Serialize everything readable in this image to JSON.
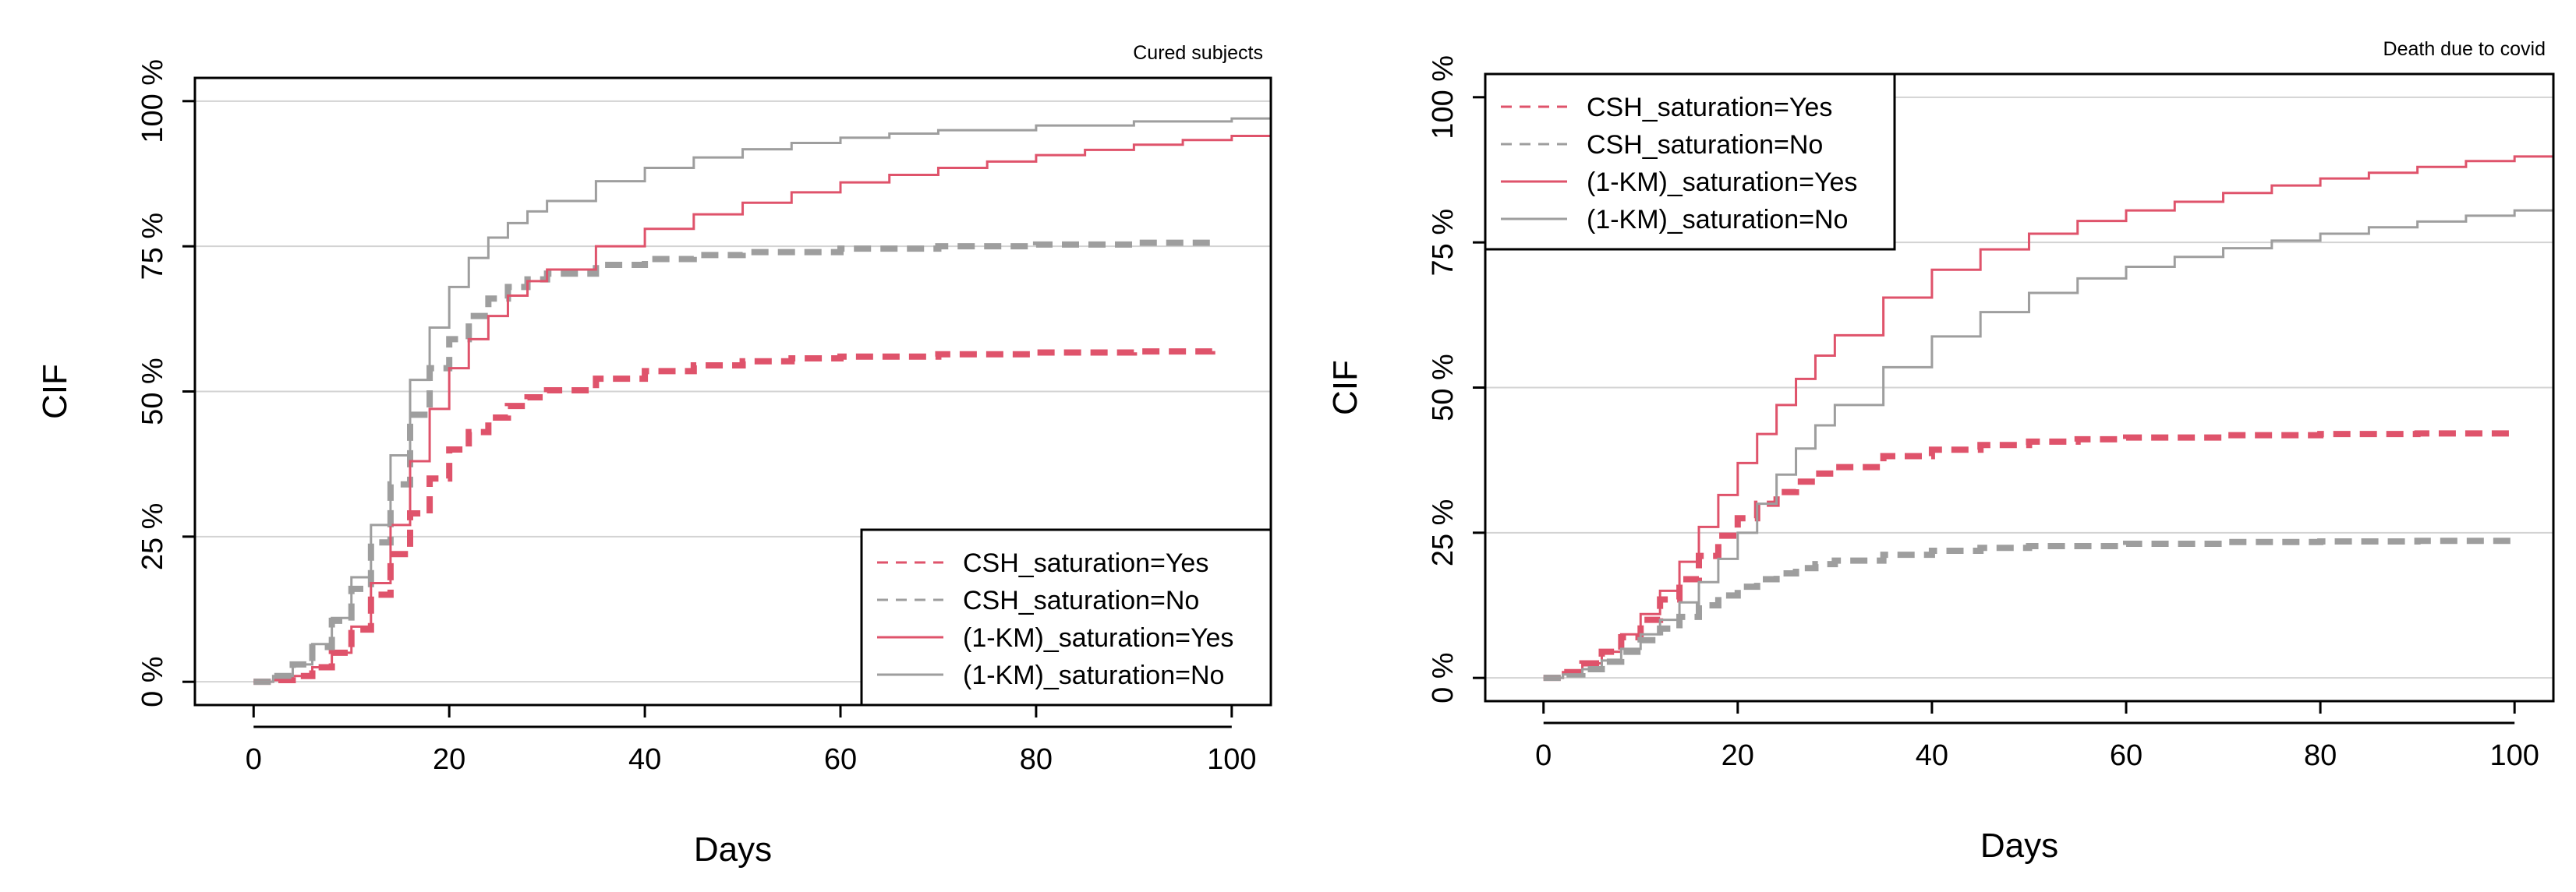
{
  "chart_data": [
    {
      "type": "line",
      "title": "Cured subjects",
      "xlabel": "Days",
      "ylabel": "CIF",
      "xlim": [
        -6,
        104
      ],
      "ylim": [
        -4,
        104
      ],
      "x_ticks": [
        0,
        20,
        40,
        60,
        80,
        100
      ],
      "x_tick_labels": [
        "0",
        "20",
        "40",
        "60",
        "80",
        "100"
      ],
      "y_ticks": [
        0,
        25,
        50,
        75,
        100
      ],
      "y_tick_labels": [
        "0 %",
        "25 %",
        "50 %",
        "75 %",
        "100 %"
      ],
      "grid": "horizontal",
      "legend_position": "bottom-right",
      "series": [
        {
          "name": "CSH_saturation=Yes",
          "color": "#DF536B",
          "style": "dashed",
          "points": [
            [
              0,
              0
            ],
            [
              2,
              0.3
            ],
            [
              4,
              1
            ],
            [
              6,
              2.5
            ],
            [
              8,
              5
            ],
            [
              10,
              9
            ],
            [
              12,
              15
            ],
            [
              14,
              22
            ],
            [
              16,
              29
            ],
            [
              18,
              35
            ],
            [
              20,
              40
            ],
            [
              22,
              43
            ],
            [
              24,
              45.5
            ],
            [
              26,
              47.5
            ],
            [
              28,
              49
            ],
            [
              30,
              50.2
            ],
            [
              35,
              52.2
            ],
            [
              40,
              53.5
            ],
            [
              45,
              54.5
            ],
            [
              50,
              55.2
            ],
            [
              55,
              55.7
            ],
            [
              60,
              56
            ],
            [
              70,
              56.4
            ],
            [
              80,
              56.7
            ],
            [
              90,
              56.9
            ],
            [
              98,
              57
            ]
          ]
        },
        {
          "name": "CSH_saturation=No",
          "color": "#9E9E9E",
          "style": "dashed",
          "points": [
            [
              0,
              0
            ],
            [
              2,
              1
            ],
            [
              4,
              3
            ],
            [
              6,
              6
            ],
            [
              8,
              10.5
            ],
            [
              10,
              16
            ],
            [
              12,
              24
            ],
            [
              14,
              34
            ],
            [
              16,
              46
            ],
            [
              18,
              54
            ],
            [
              20,
              59
            ],
            [
              22,
              63
            ],
            [
              24,
              66
            ],
            [
              26,
              68
            ],
            [
              28,
              69.3
            ],
            [
              30,
              70.3
            ],
            [
              35,
              71.8
            ],
            [
              40,
              72.8
            ],
            [
              45,
              73.5
            ],
            [
              50,
              74
            ],
            [
              60,
              74.6
            ],
            [
              70,
              75
            ],
            [
              80,
              75.3
            ],
            [
              90,
              75.6
            ],
            [
              98,
              75.8
            ]
          ]
        },
        {
          "name": "(1-KM)_saturation=Yes",
          "color": "#DF536B",
          "style": "solid",
          "points": [
            [
              0,
              0
            ],
            [
              2,
              0.3
            ],
            [
              4,
              1
            ],
            [
              6,
              2.5
            ],
            [
              8,
              5
            ],
            [
              10,
              9.5
            ],
            [
              12,
              17
            ],
            [
              14,
              27
            ],
            [
              16,
              38
            ],
            [
              18,
              47
            ],
            [
              20,
              54
            ],
            [
              22,
              59
            ],
            [
              24,
              63
            ],
            [
              26,
              66.5
            ],
            [
              28,
              69
            ],
            [
              30,
              71
            ],
            [
              35,
              75
            ],
            [
              40,
              78
            ],
            [
              45,
              80.5
            ],
            [
              50,
              82.5
            ],
            [
              55,
              84.3
            ],
            [
              60,
              86
            ],
            [
              65,
              87.3
            ],
            [
              70,
              88.5
            ],
            [
              75,
              89.6
            ],
            [
              80,
              90.7
            ],
            [
              85,
              91.6
            ],
            [
              90,
              92.5
            ],
            [
              95,
              93.3
            ],
            [
              100,
              94
            ],
            [
              104,
              94.5
            ]
          ]
        },
        {
          "name": "(1-KM)_saturation=No",
          "color": "#9E9E9E",
          "style": "solid",
          "points": [
            [
              0,
              0
            ],
            [
              2,
              1
            ],
            [
              4,
              3
            ],
            [
              6,
              6.5
            ],
            [
              8,
              11
            ],
            [
              10,
              18
            ],
            [
              12,
              27
            ],
            [
              14,
              39
            ],
            [
              16,
              52
            ],
            [
              18,
              61
            ],
            [
              20,
              68
            ],
            [
              22,
              73
            ],
            [
              24,
              76.5
            ],
            [
              26,
              79
            ],
            [
              28,
              81
            ],
            [
              30,
              82.8
            ],
            [
              35,
              86.2
            ],
            [
              40,
              88.5
            ],
            [
              45,
              90.3
            ],
            [
              50,
              91.7
            ],
            [
              55,
              92.8
            ],
            [
              60,
              93.7
            ],
            [
              65,
              94.4
            ],
            [
              70,
              95
            ],
            [
              80,
              95.8
            ],
            [
              90,
              96.5
            ],
            [
              100,
              97
            ],
            [
              104,
              97.2
            ]
          ]
        }
      ]
    },
    {
      "type": "line",
      "title": "Death due to covid",
      "xlabel": "Days",
      "ylabel": "CIF",
      "xlim": [
        -6,
        104
      ],
      "ylim": [
        -4,
        104
      ],
      "x_ticks": [
        0,
        20,
        40,
        60,
        80,
        100
      ],
      "x_tick_labels": [
        "0",
        "20",
        "40",
        "60",
        "80",
        "100"
      ],
      "y_ticks": [
        0,
        25,
        50,
        75,
        100
      ],
      "y_tick_labels": [
        "0 %",
        "25 %",
        "50 %",
        "75 %",
        "100 %"
      ],
      "grid": "horizontal",
      "legend_position": "top-left",
      "series": [
        {
          "name": "CSH_saturation=Yes",
          "color": "#DF536B",
          "style": "dashed",
          "points": [
            [
              0,
              0
            ],
            [
              2,
              1
            ],
            [
              4,
              2.5
            ],
            [
              6,
              4.5
            ],
            [
              8,
              7
            ],
            [
              10,
              10
            ],
            [
              12,
              13.5
            ],
            [
              14,
              17
            ],
            [
              16,
              21
            ],
            [
              18,
              24.5
            ],
            [
              20,
              27.5
            ],
            [
              22,
              30
            ],
            [
              24,
              32
            ],
            [
              26,
              33.8
            ],
            [
              28,
              35.2
            ],
            [
              30,
              36.3
            ],
            [
              35,
              38.2
            ],
            [
              40,
              39.3
            ],
            [
              45,
              40.1
            ],
            [
              50,
              40.7
            ],
            [
              55,
              41.1
            ],
            [
              60,
              41.4
            ],
            [
              70,
              41.8
            ],
            [
              80,
              42
            ],
            [
              90,
              42.1
            ],
            [
              100,
              42.2
            ]
          ]
        },
        {
          "name": "CSH_saturation=No",
          "color": "#9E9E9E",
          "style": "dashed",
          "points": [
            [
              0,
              0
            ],
            [
              2,
              0.6
            ],
            [
              4,
              1.5
            ],
            [
              6,
              2.8
            ],
            [
              8,
              4.5
            ],
            [
              10,
              6.5
            ],
            [
              12,
              8.5
            ],
            [
              14,
              10.5
            ],
            [
              16,
              12.5
            ],
            [
              18,
              14.2
            ],
            [
              20,
              15.7
            ],
            [
              22,
              17
            ],
            [
              24,
              18
            ],
            [
              26,
              18.9
            ],
            [
              28,
              19.6
            ],
            [
              30,
              20.2
            ],
            [
              35,
              21.2
            ],
            [
              40,
              21.9
            ],
            [
              45,
              22.4
            ],
            [
              50,
              22.7
            ],
            [
              60,
              23.1
            ],
            [
              70,
              23.4
            ],
            [
              80,
              23.5
            ],
            [
              90,
              23.6
            ],
            [
              100,
              23.7
            ]
          ]
        },
        {
          "name": "(1-KM)_saturation=Yes",
          "color": "#DF536B",
          "style": "solid",
          "points": [
            [
              0,
              0
            ],
            [
              2,
              1
            ],
            [
              4,
              2.5
            ],
            [
              6,
              4.5
            ],
            [
              8,
              7.5
            ],
            [
              10,
              11
            ],
            [
              12,
              15
            ],
            [
              14,
              20
            ],
            [
              16,
              26
            ],
            [
              18,
              31.5
            ],
            [
              20,
              37
            ],
            [
              22,
              42
            ],
            [
              24,
              47
            ],
            [
              26,
              51.5
            ],
            [
              28,
              55.5
            ],
            [
              30,
              59
            ],
            [
              35,
              65.5
            ],
            [
              40,
              70.3
            ],
            [
              45,
              73.8
            ],
            [
              50,
              76.5
            ],
            [
              55,
              78.7
            ],
            [
              60,
              80.5
            ],
            [
              65,
              82
            ],
            [
              70,
              83.5
            ],
            [
              75,
              84.8
            ],
            [
              80,
              86
            ],
            [
              85,
              87
            ],
            [
              90,
              88
            ],
            [
              95,
              89
            ],
            [
              100,
              89.8
            ],
            [
              104,
              90.3
            ]
          ]
        },
        {
          "name": "(1-KM)_saturation=No",
          "color": "#9E9E9E",
          "style": "solid",
          "points": [
            [
              0,
              0
            ],
            [
              2,
              0.6
            ],
            [
              4,
              1.5
            ],
            [
              6,
              3
            ],
            [
              8,
              5
            ],
            [
              10,
              7.5
            ],
            [
              12,
              10
            ],
            [
              14,
              13
            ],
            [
              16,
              16.5
            ],
            [
              18,
              20.5
            ],
            [
              20,
              25
            ],
            [
              22,
              30
            ],
            [
              24,
              35
            ],
            [
              26,
              39.5
            ],
            [
              28,
              43.5
            ],
            [
              30,
              47
            ],
            [
              35,
              53.5
            ],
            [
              40,
              58.8
            ],
            [
              45,
              63
            ],
            [
              50,
              66.3
            ],
            [
              55,
              68.8
            ],
            [
              60,
              70.8
            ],
            [
              65,
              72.5
            ],
            [
              70,
              74
            ],
            [
              75,
              75.3
            ],
            [
              80,
              76.5
            ],
            [
              85,
              77.6
            ],
            [
              90,
              78.6
            ],
            [
              95,
              79.6
            ],
            [
              100,
              80.5
            ],
            [
              104,
              81
            ]
          ]
        }
      ]
    }
  ]
}
